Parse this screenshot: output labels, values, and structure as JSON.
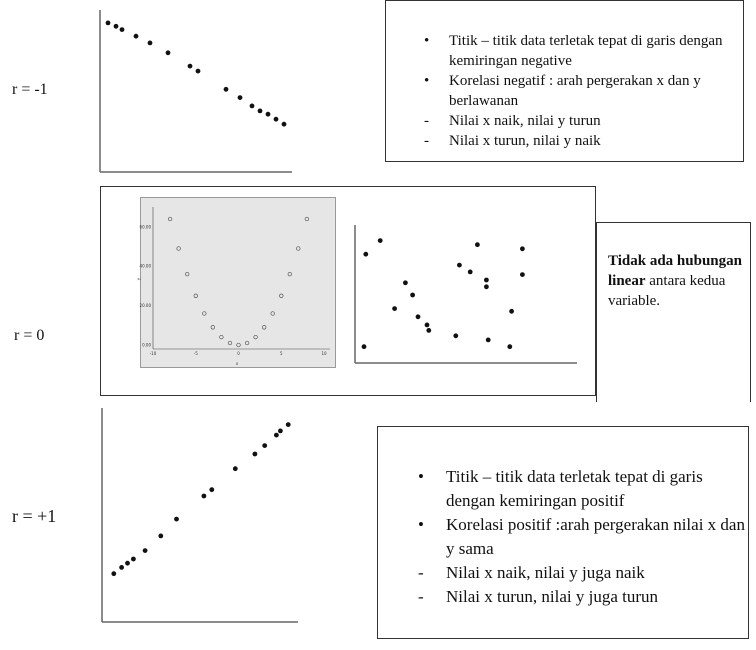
{
  "labels": {
    "r_neg1": "r = -1",
    "r_zero": "r = 0",
    "r_pos1": "r = +1"
  },
  "notes": {
    "negative": {
      "bullets": [
        "Titik – titik data terletak tepat di garis dengan kemiringan negative",
        "Korelasi negatif : arah pergerakan x dan y berlawanan"
      ],
      "subs": [
        "Nilai x naik, nilai y turun",
        "Nilai x turun, nilai y naik"
      ],
      "bullet_symbol": "•",
      "dash_symbol": "-"
    },
    "zero": {
      "bold": "Tidak ada hubungan linear",
      "rest": "antara kedua variable."
    },
    "positive": {
      "bullets": [
        "Titik – titik data terletak tepat di garis dengan kemiringan positif",
        "Korelasi positif :arah pergerakan nilai x dan y sama"
      ],
      "subs": [
        "Nilai x naik, nilai y juga naik",
        "Nilai x turun, nilai y juga turun"
      ],
      "bullet_symbol": "•",
      "dash_symbol": "-"
    }
  },
  "chart_data": [
    {
      "type": "scatter",
      "xlim": [
        0,
        10
      ],
      "ylim": [
        0,
        10
      ],
      "points": [
        [
          0.4,
          9.1
        ],
        [
          0.8,
          8.9
        ],
        [
          1.1,
          8.7
        ],
        [
          1.8,
          8.3
        ],
        [
          2.5,
          7.9
        ],
        [
          3.4,
          7.3
        ],
        [
          4.5,
          6.5
        ],
        [
          4.9,
          6.2
        ],
        [
          6.3,
          5.1
        ],
        [
          7.0,
          4.6
        ],
        [
          7.6,
          4.1
        ],
        [
          8.0,
          3.8
        ],
        [
          8.4,
          3.6
        ],
        [
          8.8,
          3.3
        ],
        [
          9.2,
          3.0
        ]
      ],
      "grid": false,
      "axes": "left-bottom"
    },
    {
      "type": "scatter",
      "xlabel": "x",
      "ylabel": "Y",
      "xlim": [
        -10,
        10
      ],
      "ylim": [
        0,
        65
      ],
      "xticks": [
        "-10",
        "-5",
        "0",
        "5",
        "10"
      ],
      "yticks": [
        "0.00",
        "20.00",
        "40.00",
        "60.00"
      ],
      "points": [
        [
          -8,
          64
        ],
        [
          -7,
          49
        ],
        [
          -6,
          36
        ],
        [
          -5,
          25
        ],
        [
          -4,
          16
        ],
        [
          -3,
          9
        ],
        [
          -2,
          4
        ],
        [
          -1,
          1
        ],
        [
          0,
          0
        ],
        [
          1,
          1
        ],
        [
          2,
          4
        ],
        [
          3,
          9
        ],
        [
          4,
          16
        ],
        [
          5,
          25
        ],
        [
          6,
          36
        ],
        [
          7,
          49
        ],
        [
          8,
          64
        ]
      ],
      "marker": "hollow-circle",
      "background": "#e6e6e6",
      "grid": false
    },
    {
      "type": "scatter",
      "xlim": [
        0,
        10
      ],
      "ylim": [
        0,
        10
      ],
      "points": [
        [
          0.6,
          8.0
        ],
        [
          1.4,
          9.0
        ],
        [
          0.5,
          1.2
        ],
        [
          2.2,
          4.0
        ],
        [
          2.8,
          5.9
        ],
        [
          3.2,
          5.0
        ],
        [
          3.5,
          3.4
        ],
        [
          4.0,
          2.8
        ],
        [
          4.1,
          2.4
        ],
        [
          5.6,
          2.0
        ],
        [
          5.8,
          7.2
        ],
        [
          6.4,
          6.7
        ],
        [
          6.8,
          8.7
        ],
        [
          7.3,
          6.1
        ],
        [
          7.3,
          5.6
        ],
        [
          7.4,
          1.7
        ],
        [
          8.6,
          1.2
        ],
        [
          8.7,
          3.8
        ],
        [
          9.3,
          6.5
        ],
        [
          9.3,
          8.4
        ]
      ],
      "grid": false,
      "axes": "left-bottom"
    },
    {
      "type": "scatter",
      "xlim": [
        0,
        10
      ],
      "ylim": [
        0,
        10
      ],
      "points": [
        [
          0.6,
          2.3
        ],
        [
          1.0,
          2.6
        ],
        [
          1.3,
          2.8
        ],
        [
          1.6,
          3.0
        ],
        [
          2.2,
          3.4
        ],
        [
          3.0,
          4.1
        ],
        [
          3.8,
          4.9
        ],
        [
          5.2,
          6.0
        ],
        [
          5.6,
          6.3
        ],
        [
          6.8,
          7.3
        ],
        [
          7.8,
          8.0
        ],
        [
          8.3,
          8.4
        ],
        [
          8.9,
          8.9
        ],
        [
          9.1,
          9.1
        ],
        [
          9.5,
          9.4
        ]
      ],
      "grid": false,
      "axes": "left-bottom"
    }
  ]
}
